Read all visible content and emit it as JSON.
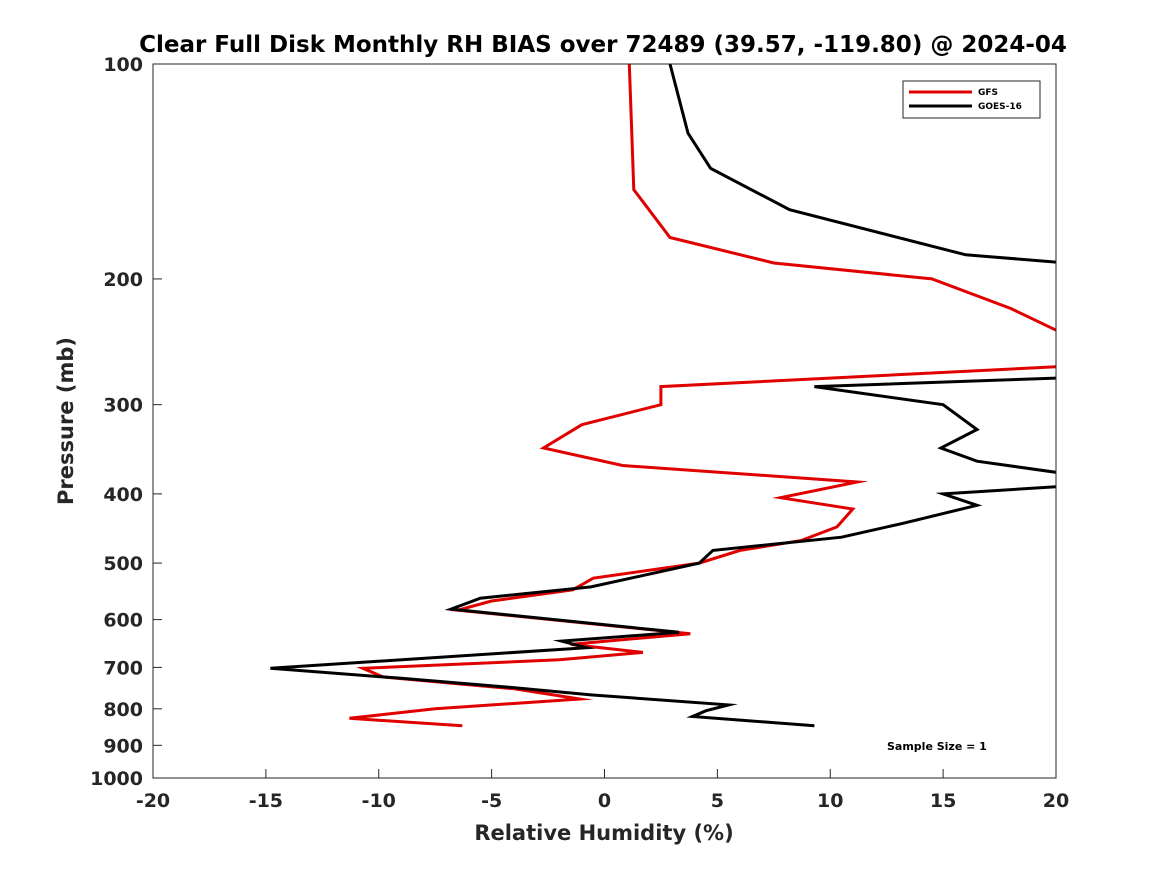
{
  "chart_data": {
    "type": "line",
    "title": "Clear Full Disk Monthly RH BIAS over 72489 (39.57, -119.80) @ 2024-04",
    "xlabel": "Relative Humidity (%)",
    "ylabel": "Pressure (mb)",
    "xlim": [
      -20,
      20
    ],
    "ylim": [
      100,
      1000
    ],
    "yscale": "log",
    "y_reversed": true,
    "xticks": [
      -20,
      -15,
      -10,
      -5,
      0,
      5,
      10,
      15,
      20
    ],
    "xtick_labels": [
      "-20",
      "-15",
      "-10",
      "-5",
      "0",
      "5",
      "10",
      "15",
      "20"
    ],
    "yticks": [
      100,
      200,
      300,
      400,
      500,
      600,
      700,
      800,
      900,
      1000
    ],
    "ytick_labels": [
      "100",
      "200",
      "300",
      "400",
      "500",
      "600",
      "700",
      "800",
      "900",
      "1000"
    ],
    "grid": false,
    "legend_position": "top-right",
    "annotation": "Sample Size = 1",
    "series": [
      {
        "name": "GFS",
        "color": "#e00000",
        "points": [
          [
            1.1,
            100
          ],
          [
            1.3,
            150
          ],
          [
            2.9,
            175
          ],
          [
            7.5,
            190
          ],
          [
            14.5,
            200
          ],
          [
            18.0,
            220
          ],
          [
            20.5,
            240
          ],
          [
            20.5,
            265
          ],
          [
            2.5,
            283
          ],
          [
            2.5,
            300
          ],
          [
            -1.0,
            320
          ],
          [
            -2.7,
            345
          ],
          [
            0.8,
            365
          ],
          [
            11.2,
            385
          ],
          [
            7.8,
            405
          ],
          [
            11.0,
            420
          ],
          [
            10.3,
            445
          ],
          [
            8.7,
            465
          ],
          [
            6.0,
            480
          ],
          [
            4.2,
            500
          ],
          [
            -0.5,
            525
          ],
          [
            -1.4,
            545
          ],
          [
            -5.0,
            565
          ],
          [
            -6.5,
            582
          ],
          [
            3.8,
            628
          ],
          [
            -1.5,
            650
          ],
          [
            1.7,
            667
          ],
          [
            -2.0,
            683
          ],
          [
            -10.7,
            702
          ],
          [
            -9.8,
            722
          ],
          [
            -4.0,
            750
          ],
          [
            -1.1,
            775
          ],
          [
            -7.5,
            800
          ],
          [
            -11.3,
            825
          ],
          [
            -6.3,
            845
          ]
        ]
      },
      {
        "name": "GOES-16",
        "color": "#000000",
        "points": [
          [
            2.9,
            100
          ],
          [
            3.7,
            125
          ],
          [
            4.7,
            140
          ],
          [
            8.2,
            160
          ],
          [
            16.0,
            185
          ],
          [
            20.5,
            190
          ],
          [
            20.5,
            275
          ],
          [
            9.3,
            283
          ],
          [
            15.0,
            300
          ],
          [
            16.5,
            325
          ],
          [
            14.9,
            345
          ],
          [
            16.5,
            360
          ],
          [
            20.5,
            375
          ],
          [
            20.5,
            390
          ],
          [
            15.0,
            400
          ],
          [
            16.5,
            415
          ],
          [
            13.2,
            440
          ],
          [
            10.5,
            460
          ],
          [
            4.8,
            480
          ],
          [
            4.2,
            500
          ],
          [
            -0.6,
            540
          ],
          [
            -5.5,
            560
          ],
          [
            -6.8,
            580
          ],
          [
            3.3,
            625
          ],
          [
            -1.9,
            643
          ],
          [
            -0.8,
            657
          ],
          [
            -14.8,
            702
          ],
          [
            -9.0,
            725
          ],
          [
            -4.5,
            745
          ],
          [
            -0.6,
            765
          ],
          [
            5.5,
            790
          ],
          [
            4.5,
            805
          ],
          [
            3.9,
            820
          ],
          [
            9.3,
            845
          ]
        ]
      }
    ]
  }
}
